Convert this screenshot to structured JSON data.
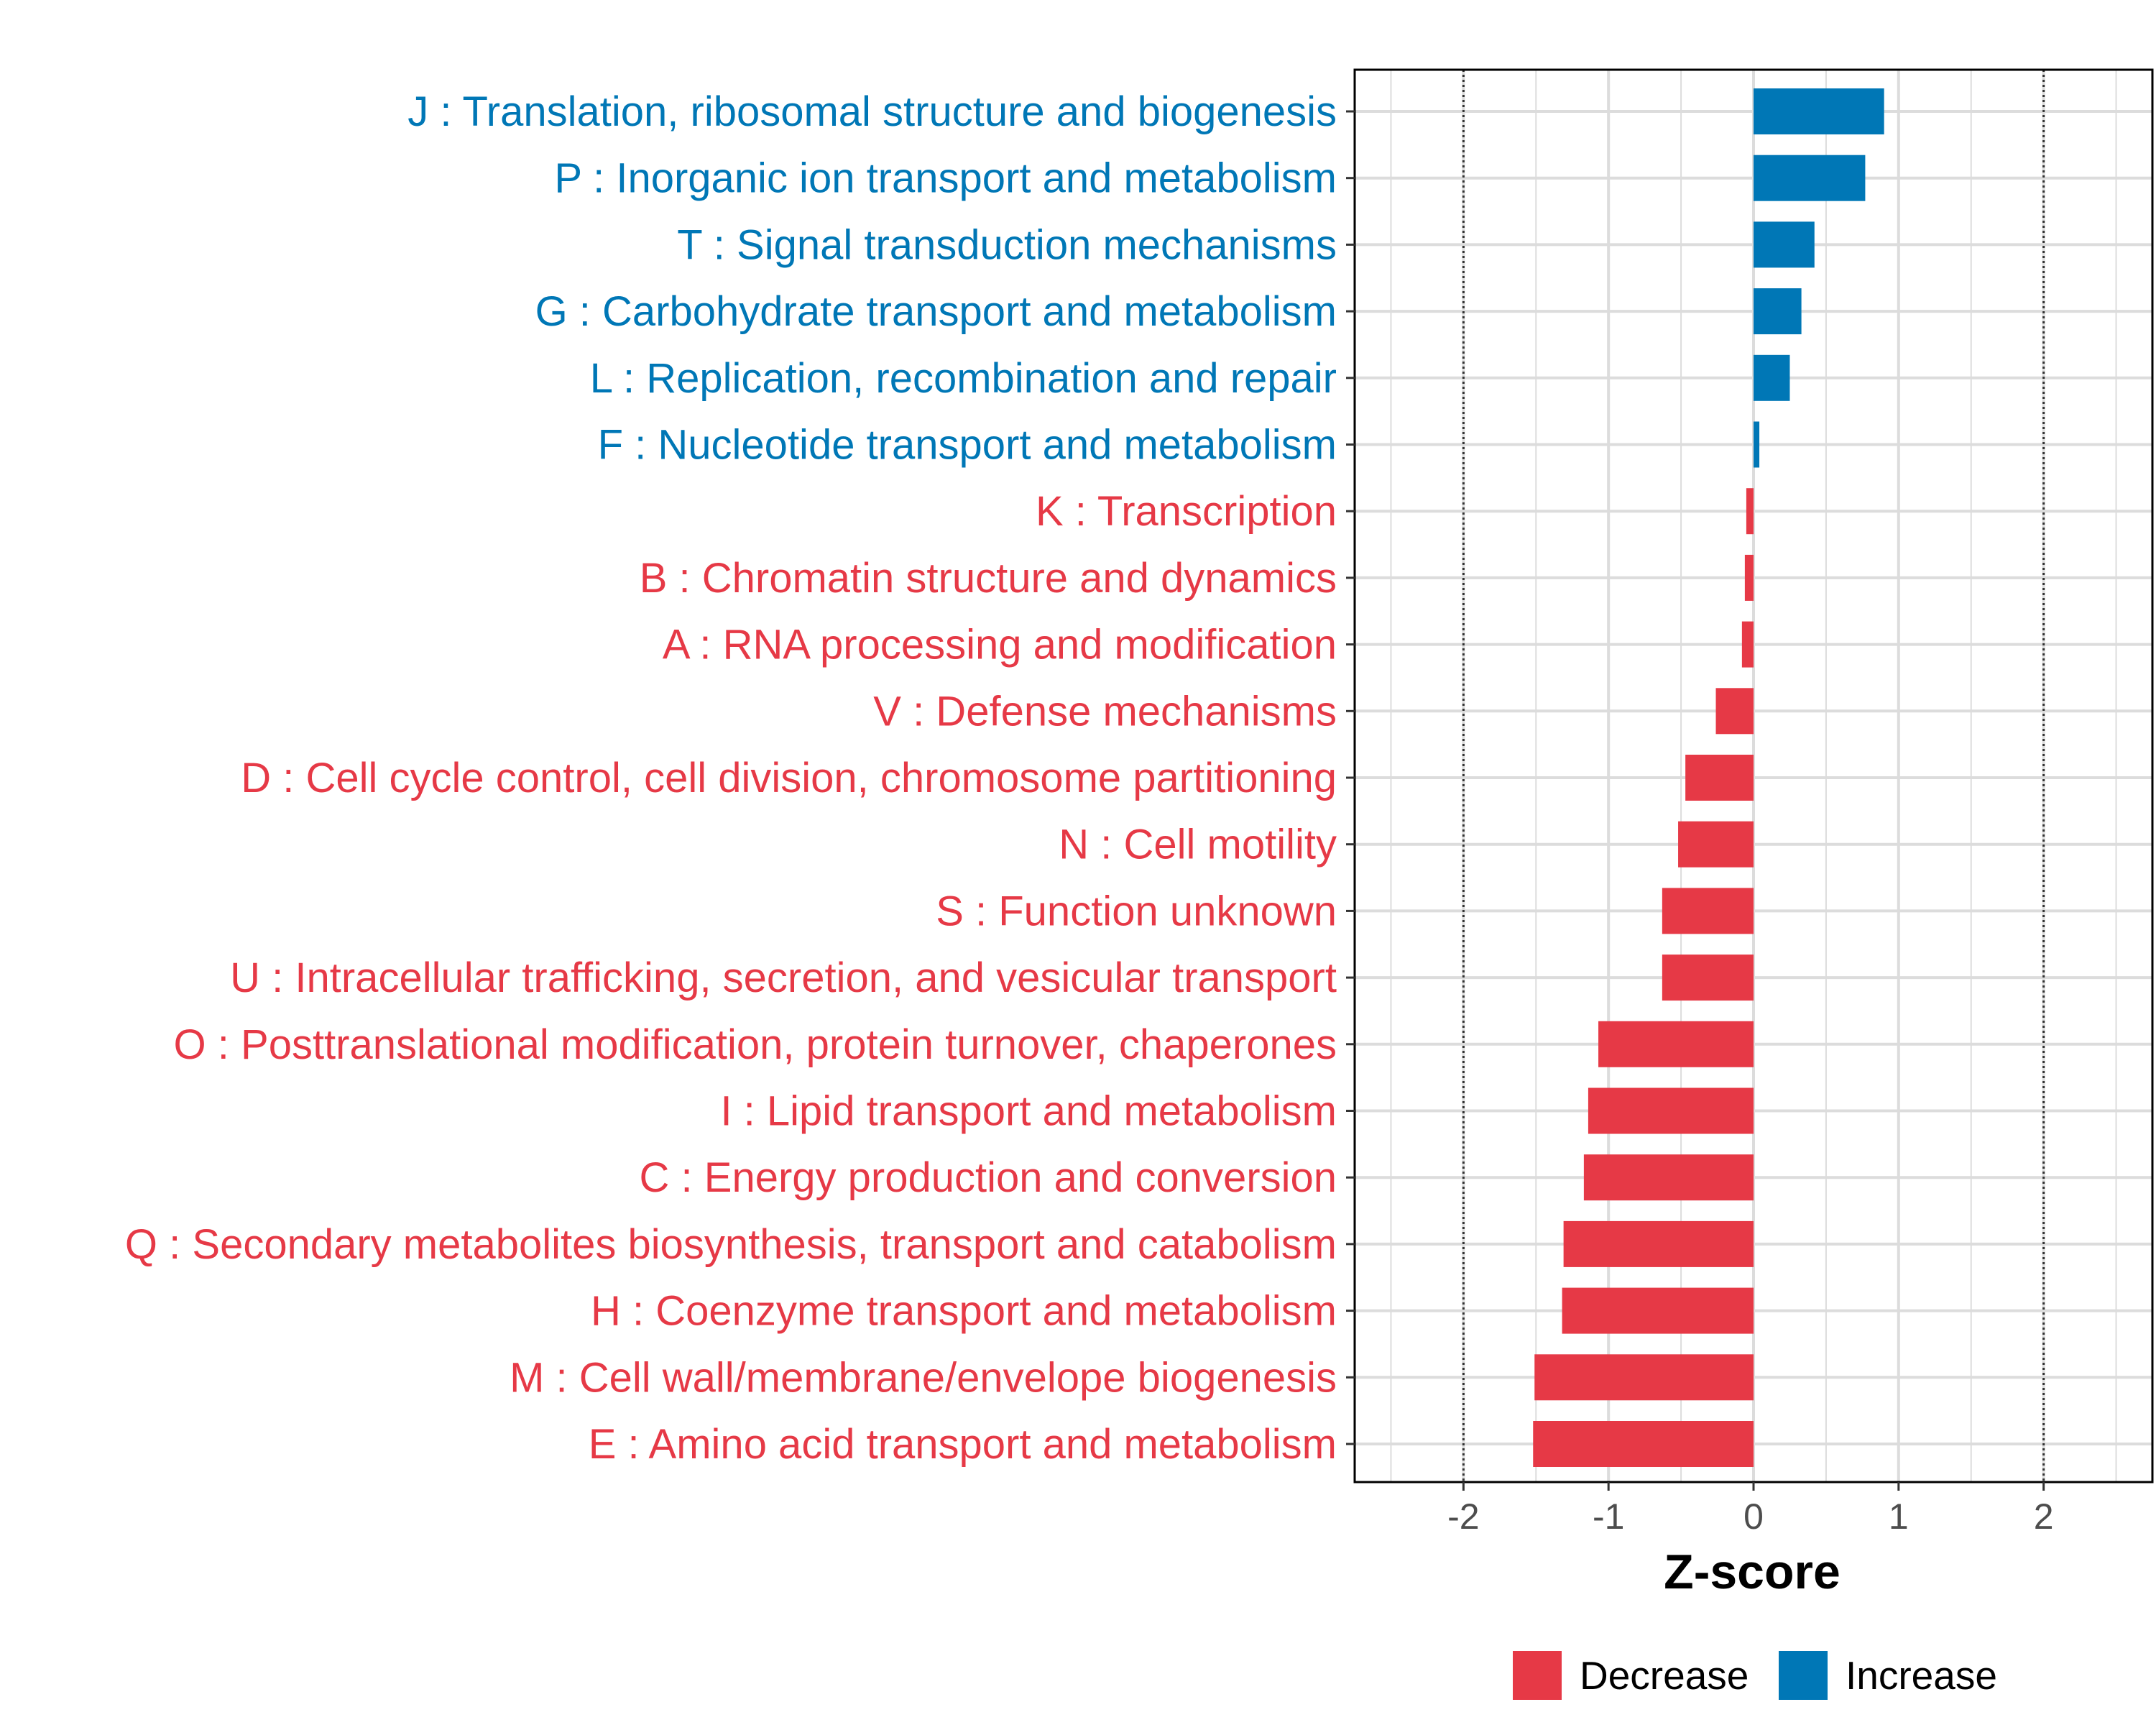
{
  "chart_data": {
    "type": "bar",
    "orientation": "horizontal",
    "xlabel": "Z-score",
    "ylabel": "",
    "xlim": [
      -2.75,
      2.75
    ],
    "xticks": [
      -2,
      -1,
      0,
      1,
      2
    ],
    "xtick_labels": [
      "-2",
      "-1",
      "0",
      "1",
      "2"
    ],
    "reference_lines": [
      -2,
      2
    ],
    "grid": true,
    "legend_position": "bottom",
    "colors": {
      "Decrease": "#e63946",
      "Increase": "#0077b6"
    },
    "categories": [
      {
        "label": "J : Translation, ribosomal structure and biogenesis",
        "value": 0.9,
        "direction": "Increase"
      },
      {
        "label": "P : Inorganic ion transport and metabolism",
        "value": 0.77,
        "direction": "Increase"
      },
      {
        "label": "T : Signal transduction mechanisms",
        "value": 0.42,
        "direction": "Increase"
      },
      {
        "label": "G : Carbohydrate transport and metabolism",
        "value": 0.33,
        "direction": "Increase"
      },
      {
        "label": "L : Replication, recombination and repair",
        "value": 0.25,
        "direction": "Increase"
      },
      {
        "label": "F : Nucleotide transport and metabolism",
        "value": 0.04,
        "direction": "Increase"
      },
      {
        "label": "K : Transcription",
        "value": -0.05,
        "direction": "Decrease"
      },
      {
        "label": "B : Chromatin structure and dynamics",
        "value": -0.06,
        "direction": "Decrease"
      },
      {
        "label": "A : RNA processing and modification",
        "value": -0.08,
        "direction": "Decrease"
      },
      {
        "label": "V : Defense mechanisms",
        "value": -0.26,
        "direction": "Decrease"
      },
      {
        "label": "D : Cell cycle control, cell division, chromosome partitioning",
        "value": -0.47,
        "direction": "Decrease"
      },
      {
        "label": "N : Cell motility",
        "value": -0.52,
        "direction": "Decrease"
      },
      {
        "label": "S : Function unknown",
        "value": -0.63,
        "direction": "Decrease"
      },
      {
        "label": "U : Intracellular trafficking, secretion, and vesicular transport",
        "value": -0.63,
        "direction": "Decrease"
      },
      {
        "label": "O : Posttranslational modification, protein turnover, chaperones",
        "value": -1.07,
        "direction": "Decrease"
      },
      {
        "label": "I : Lipid transport and metabolism",
        "value": -1.14,
        "direction": "Decrease"
      },
      {
        "label": "C : Energy production and conversion",
        "value": -1.17,
        "direction": "Decrease"
      },
      {
        "label": "Q : Secondary metabolites biosynthesis, transport and catabolism",
        "value": -1.31,
        "direction": "Decrease"
      },
      {
        "label": "H : Coenzyme transport and metabolism",
        "value": -1.32,
        "direction": "Decrease"
      },
      {
        "label": "M : Cell wall/membrane/envelope biogenesis",
        "value": -1.51,
        "direction": "Decrease"
      },
      {
        "label": "E : Amino acid transport and metabolism",
        "value": -1.52,
        "direction": "Decrease"
      }
    ],
    "legend": [
      {
        "label": "Decrease",
        "color": "#e63946"
      },
      {
        "label": "Increase",
        "color": "#0077b6"
      }
    ]
  }
}
